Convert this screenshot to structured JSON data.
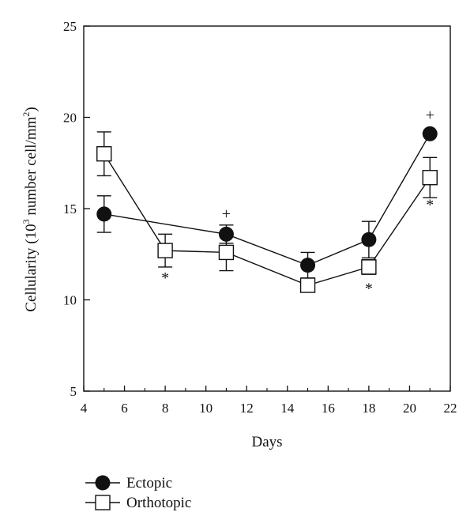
{
  "chart_data": {
    "type": "line",
    "xlabel": "Days",
    "ylabel_main": "Cellularity (10",
    "ylabel_sup1": "3",
    "ylabel_mid": " number cell/mm",
    "ylabel_sup2": "2",
    "ylabel_end": ")",
    "xlim": [
      4,
      22
    ],
    "ylim": [
      5,
      25
    ],
    "xticks": [
      4,
      6,
      8,
      10,
      12,
      14,
      16,
      18,
      20,
      22
    ],
    "yticks": [
      5,
      10,
      15,
      20,
      25
    ],
    "grid": false,
    "legend_position": "bottom-left",
    "series": [
      {
        "name": "Ectopic",
        "marker": "filled-circle",
        "x": [
          5,
          11,
          15,
          18,
          21
        ],
        "y": [
          14.7,
          13.6,
          11.9,
          13.3,
          19.1
        ],
        "err": [
          1.0,
          0.5,
          0.7,
          1.0,
          0.0
        ]
      },
      {
        "name": "Orthotopic",
        "marker": "open-square",
        "x": [
          5,
          8,
          11,
          15,
          18,
          21
        ],
        "y": [
          18.0,
          12.7,
          12.6,
          10.8,
          11.8,
          16.7
        ],
        "err": [
          1.2,
          0.9,
          1.0,
          0.0,
          0.4,
          1.1
        ]
      }
    ],
    "annotations": [
      {
        "text": "+",
        "x": 21,
        "y": 20.1
      },
      {
        "text": "+",
        "x": 11,
        "y": 14.7
      },
      {
        "text": "*",
        "x": 8,
        "y": 11.2
      },
      {
        "text": "*",
        "x": 18,
        "y": 10.6
      },
      {
        "text": "*",
        "x": 21,
        "y": 15.2
      }
    ]
  }
}
